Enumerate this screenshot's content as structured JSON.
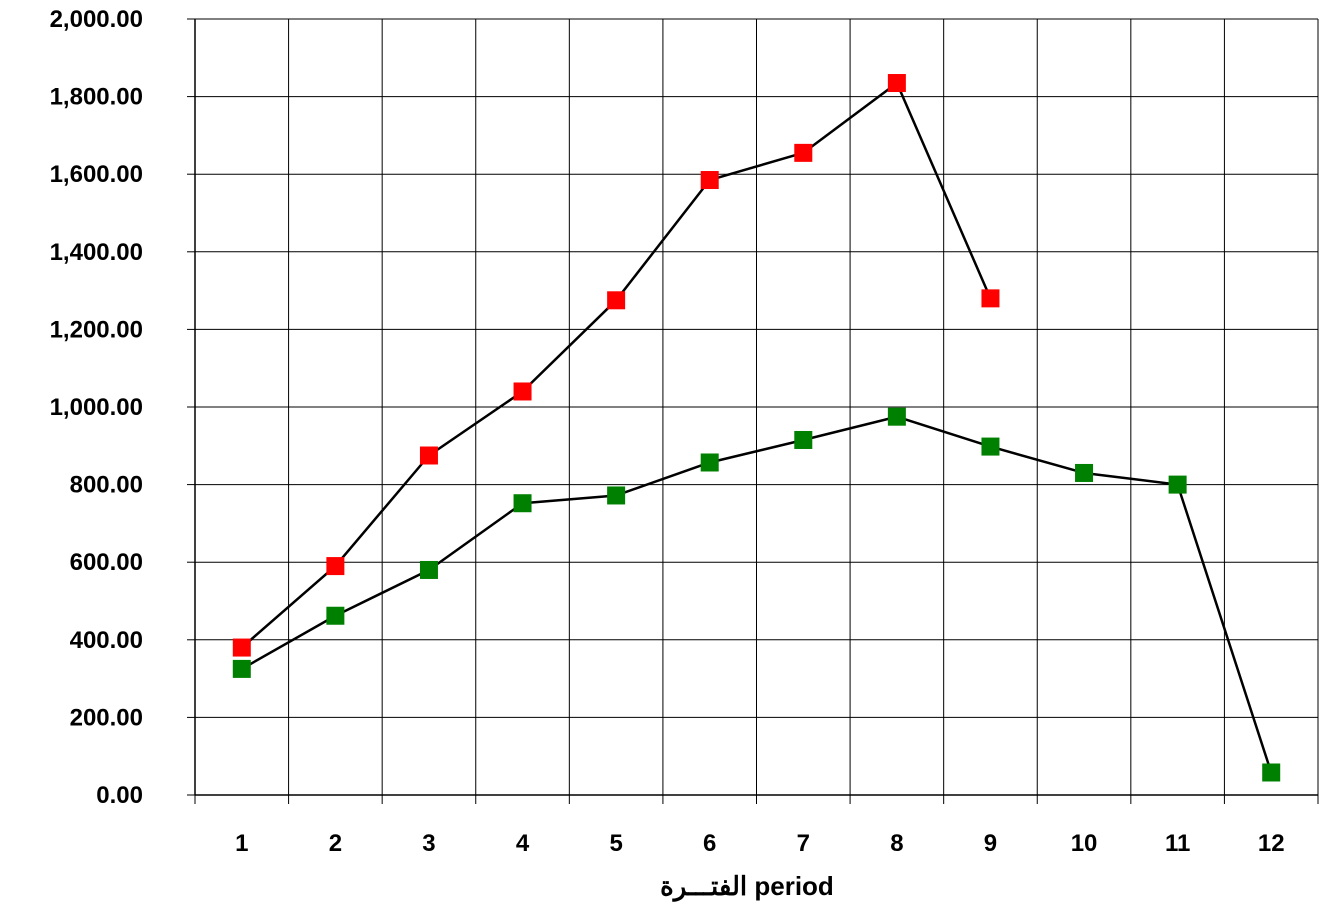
{
  "chart_data": {
    "type": "line",
    "title": "",
    "xlabel": "الفتـــرة  period",
    "ylabel": "",
    "categories": [
      "1",
      "2",
      "3",
      "4",
      "5",
      "6",
      "7",
      "8",
      "9",
      "10",
      "11",
      "12"
    ],
    "y_tick_labels": [
      "0.00",
      "200.00",
      "400.00",
      "600.00",
      "800.00",
      "1,000.00",
      "1,200.00",
      "1,400.00",
      "1,600.00",
      "1,800.00",
      "2,000.00"
    ],
    "ylim": [
      0,
      2000
    ],
    "grid": true,
    "legend": "none",
    "series": [
      {
        "color": "#ff0000",
        "marker": "square",
        "values": [
          380,
          590,
          875,
          1040,
          1275,
          1585,
          1655,
          1835,
          1280,
          null,
          null,
          null
        ]
      },
      {
        "color": "#008000",
        "marker": "square",
        "values": [
          325,
          462,
          580,
          752,
          772,
          857,
          915,
          975,
          898,
          830,
          800,
          58
        ]
      }
    ]
  }
}
